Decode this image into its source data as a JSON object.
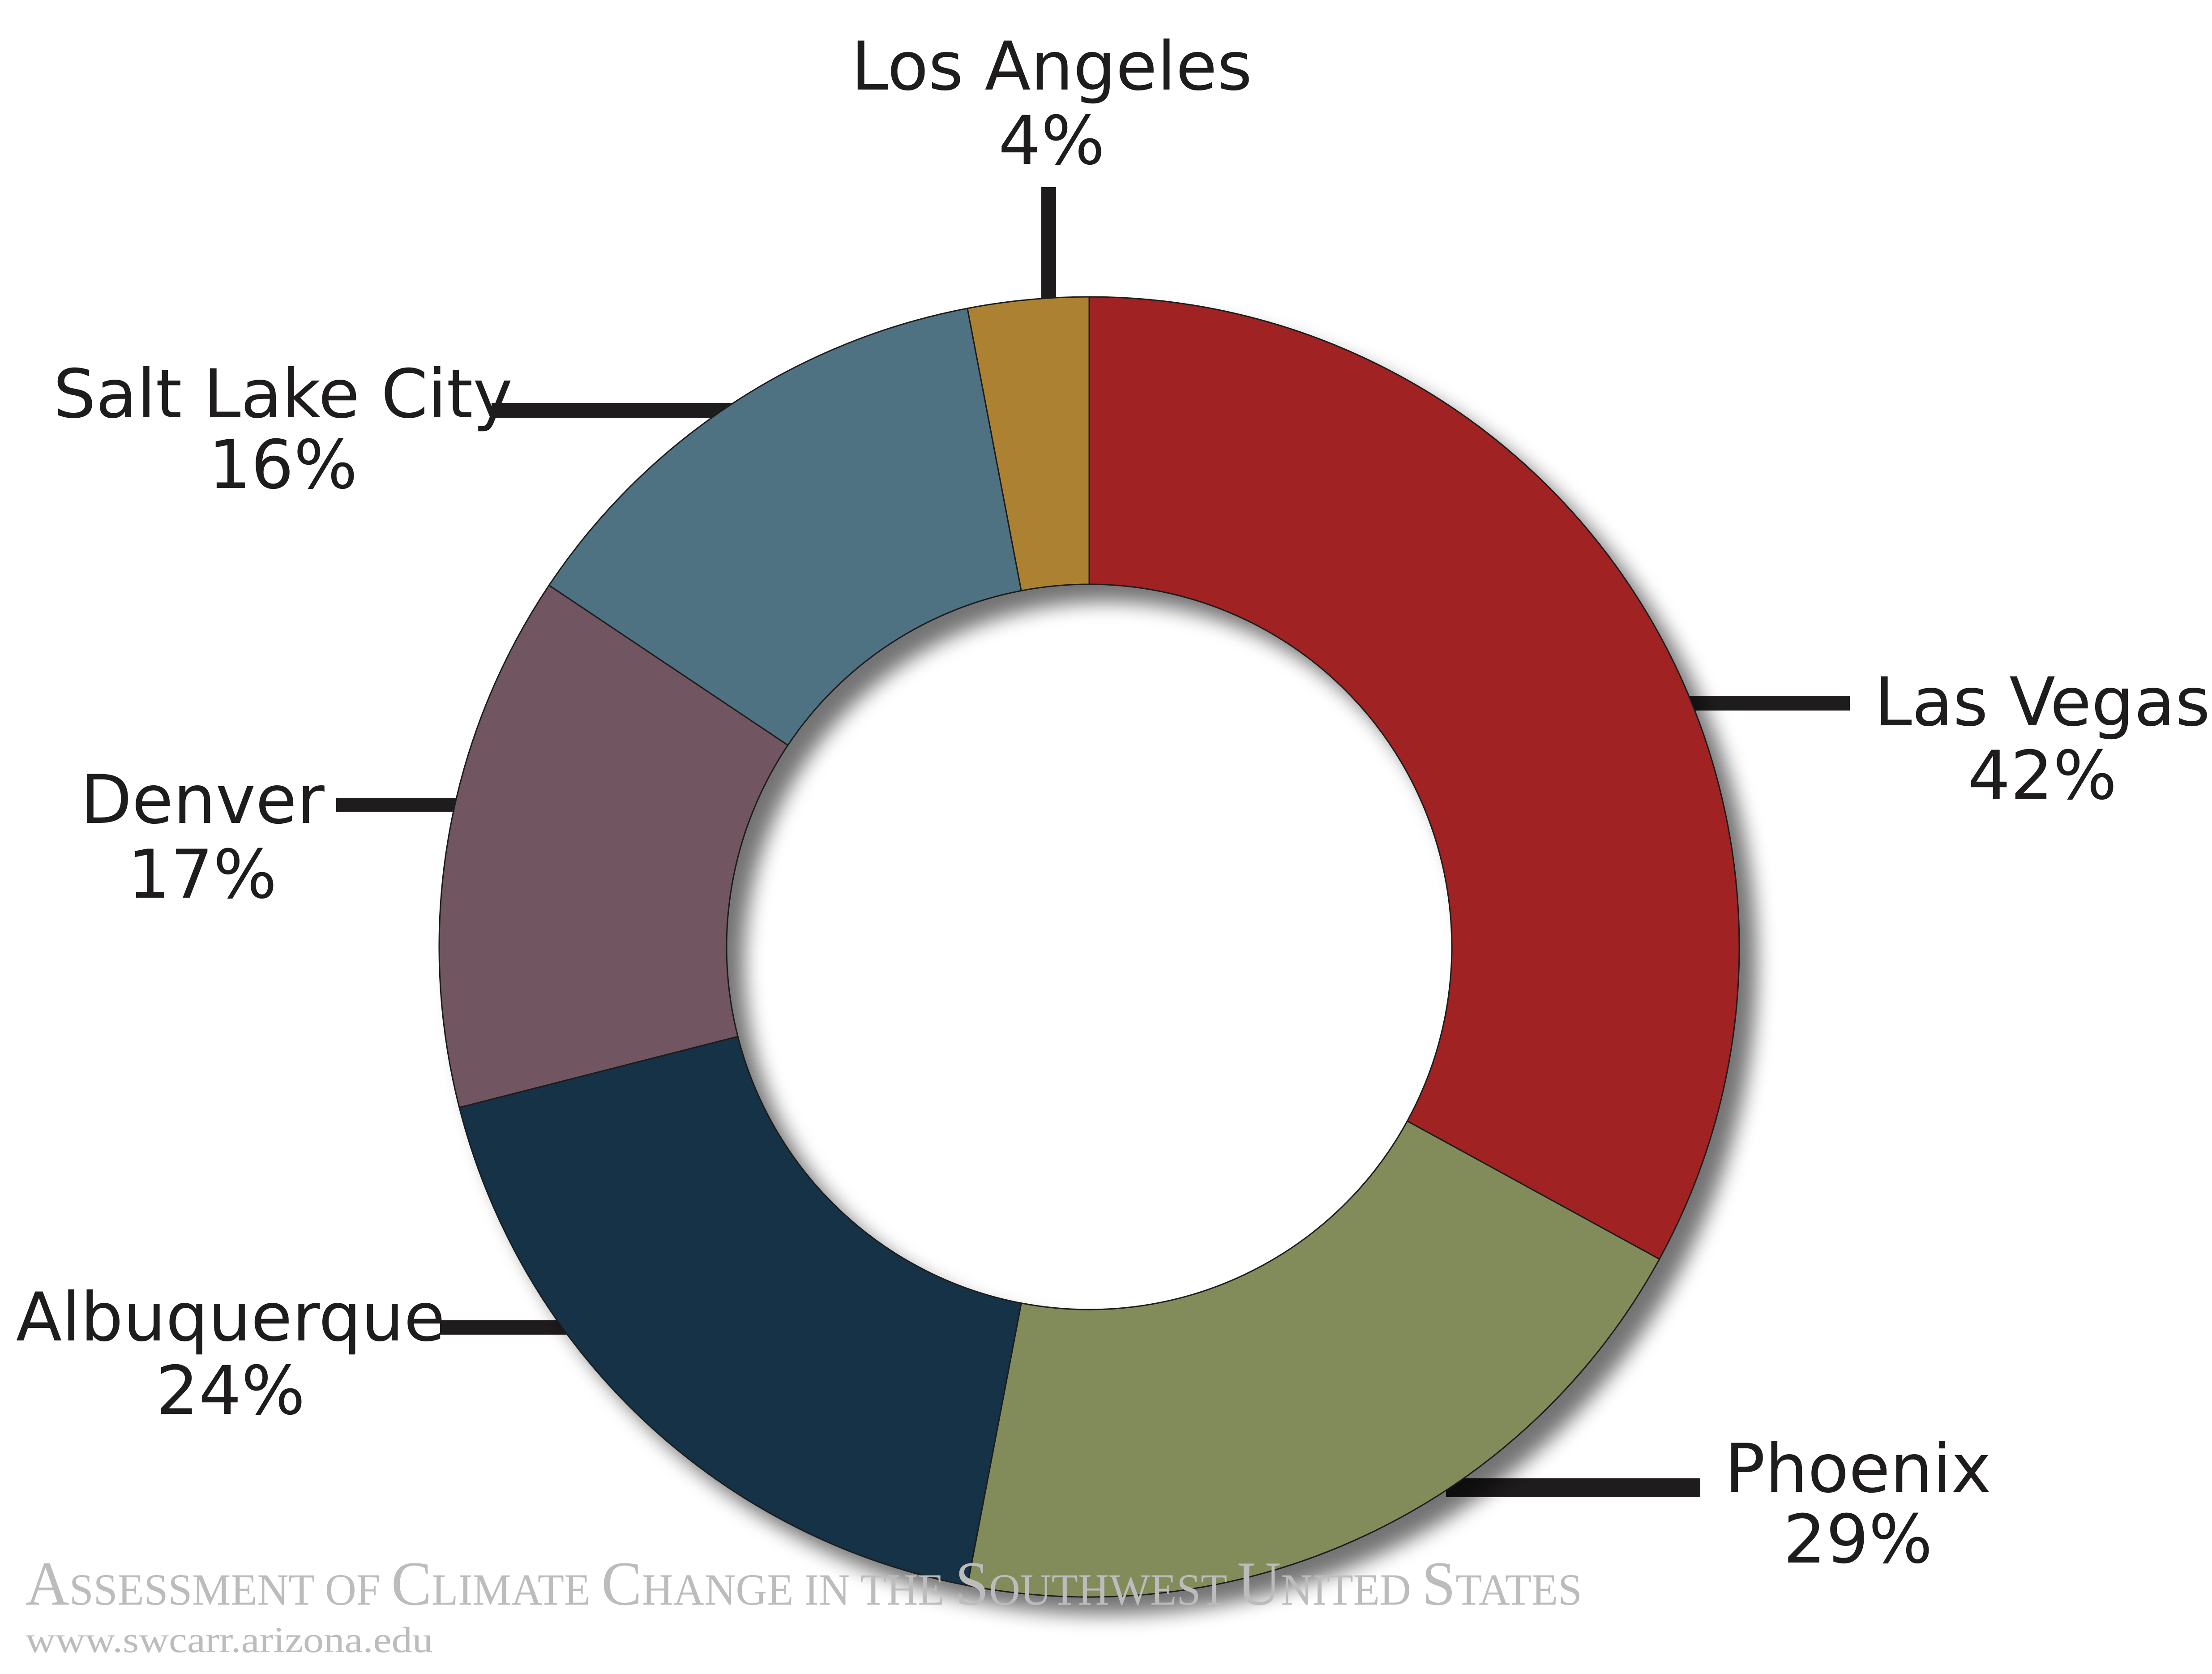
{
  "chart_data": {
    "type": "pie",
    "subtype": "donut",
    "title": "",
    "unit": "%",
    "categories": [
      "Las Vegas",
      "Phoenix",
      "Albuquerque",
      "Denver",
      "Salt Lake City",
      "Los Angeles"
    ],
    "values": [
      42,
      29,
      24,
      17,
      16,
      4
    ],
    "colors": [
      "#a02323",
      "#828b5a",
      "#123347",
      "#715560",
      "#507283",
      "#ac8230"
    ],
    "slice_order": "clockwise from 12 o'clock",
    "legend": "none (direct labels with leader lines)"
  },
  "labels": [
    {
      "name": "Los Angeles",
      "pct": "4%"
    },
    {
      "name": "Las Vegas",
      "pct": "42%"
    },
    {
      "name": "Phoenix",
      "pct": "29%"
    },
    {
      "name": "Albuquerque",
      "pct": "24%"
    },
    {
      "name": "Denver",
      "pct": "17%"
    },
    {
      "name": "Salt Lake City",
      "pct": "16%"
    }
  ],
  "footer": {
    "title_parts": [
      {
        "cap": "A",
        "rest": "SSESSMENT OF "
      },
      {
        "cap": "C",
        "rest": "LIMATE "
      },
      {
        "cap": "C",
        "rest": "HANGE IN THE "
      },
      {
        "cap": "S",
        "rest": "OUTHWEST "
      },
      {
        "cap": "U",
        "rest": "NITED "
      },
      {
        "cap": "S",
        "rest": "TATES"
      }
    ],
    "url": "www.swcarr.arizona.edu"
  }
}
